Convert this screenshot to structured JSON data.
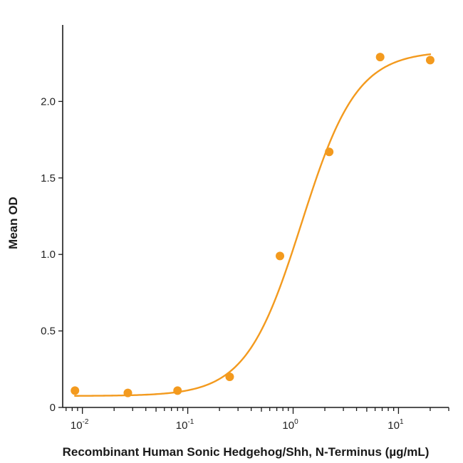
{
  "chart_data": {
    "type": "scatter",
    "title": "",
    "xlabel": "Recombinant Human Sonic Hedgehog/Shh, N-Terminus (µg/mL)",
    "ylabel": "Mean OD",
    "x_scale": "log",
    "xlim": [
      0.0065,
      30
    ],
    "ylim": [
      0,
      2.5
    ],
    "x_ticks": [
      {
        "value": 0.01,
        "base": "10",
        "exp": "-2"
      },
      {
        "value": 0.1,
        "base": "10",
        "exp": "-1"
      },
      {
        "value": 1,
        "base": "10",
        "exp": "0"
      },
      {
        "value": 10,
        "base": "10",
        "exp": "1"
      }
    ],
    "y_ticks": [
      {
        "value": 0,
        "label": "0"
      },
      {
        "value": 0.5,
        "label": "0.5"
      },
      {
        "value": 1,
        "label": "1.0"
      },
      {
        "value": 1.5,
        "label": "1.5"
      },
      {
        "value": 2,
        "label": "2.0"
      }
    ],
    "grid": false,
    "legend": "none",
    "color": "#f39a1e",
    "points": [
      {
        "x": 0.0085,
        "y": 0.11
      },
      {
        "x": 0.027,
        "y": 0.095
      },
      {
        "x": 0.08,
        "y": 0.11
      },
      {
        "x": 0.25,
        "y": 0.2
      },
      {
        "x": 0.75,
        "y": 0.99
      },
      {
        "x": 2.2,
        "y": 1.67
      },
      {
        "x": 6.7,
        "y": 2.29
      },
      {
        "x": 20,
        "y": 2.27
      }
    ],
    "fit": {
      "model": "4PL",
      "bottom": 0.075,
      "top": 2.33,
      "ec50": 1.2,
      "hill": 1.65,
      "x_range": [
        0.0085,
        20
      ]
    }
  }
}
